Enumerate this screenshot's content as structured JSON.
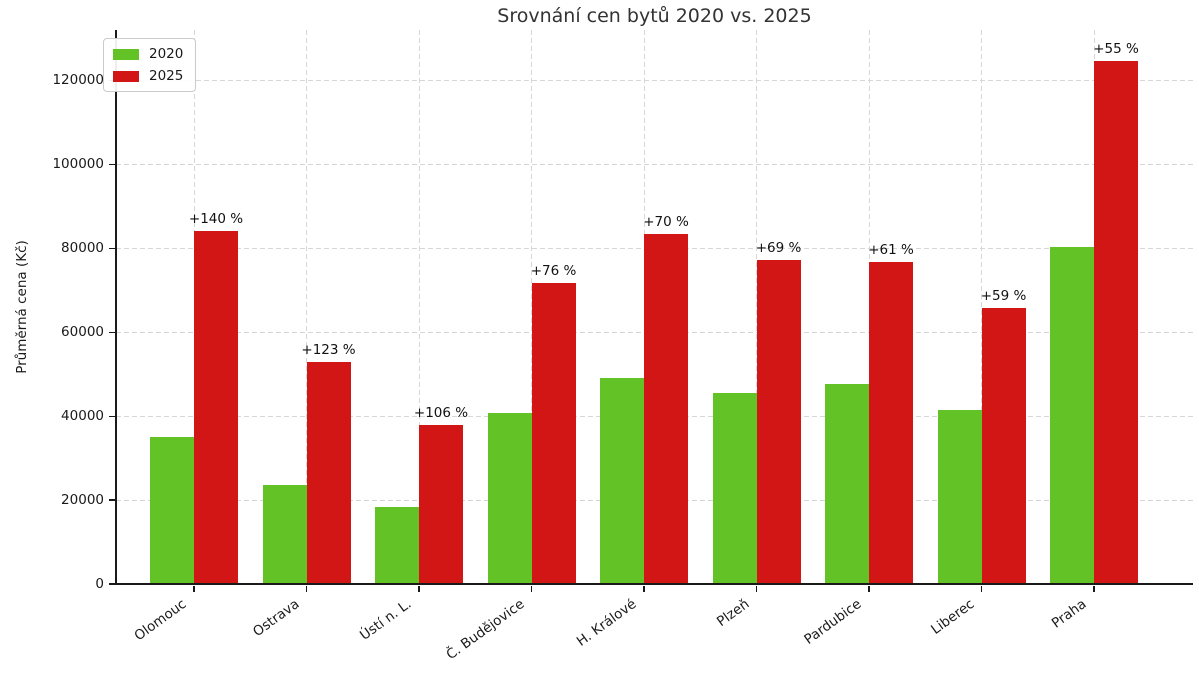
{
  "chart_data": {
    "type": "bar",
    "title": "Srovnání cen bytů 2020 vs. 2025",
    "ylabel": "Průměrná cena (Kč)",
    "xlabel": "",
    "categories": [
      "Olomouc",
      "Ostrava",
      "Ústí n. L.",
      "Č. Budějovice",
      "H. Králové",
      "Plzeň",
      "Pardubice",
      "Liberec",
      "Praha"
    ],
    "series": [
      {
        "name": "2020",
        "color": "#63c326",
        "values": [
          35000,
          23700,
          18400,
          40700,
          49000,
          45600,
          47700,
          41400,
          80300
        ]
      },
      {
        "name": "2025",
        "color": "#d21616",
        "values": [
          84000,
          52800,
          37900,
          71700,
          83300,
          77100,
          76800,
          65800,
          124500
        ]
      }
    ],
    "bar_labels": [
      "+140 %",
      "+123 %",
      "+106 %",
      "+76 %",
      "+70 %",
      "+69 %",
      "+61 %",
      "+59 %",
      "+55 %"
    ],
    "yticks": [
      0,
      20000,
      40000,
      60000,
      80000,
      100000,
      120000
    ],
    "ylim": [
      0,
      132000
    ],
    "grid": "dashed horizontal and vertical",
    "legend_position": "upper-left"
  }
}
